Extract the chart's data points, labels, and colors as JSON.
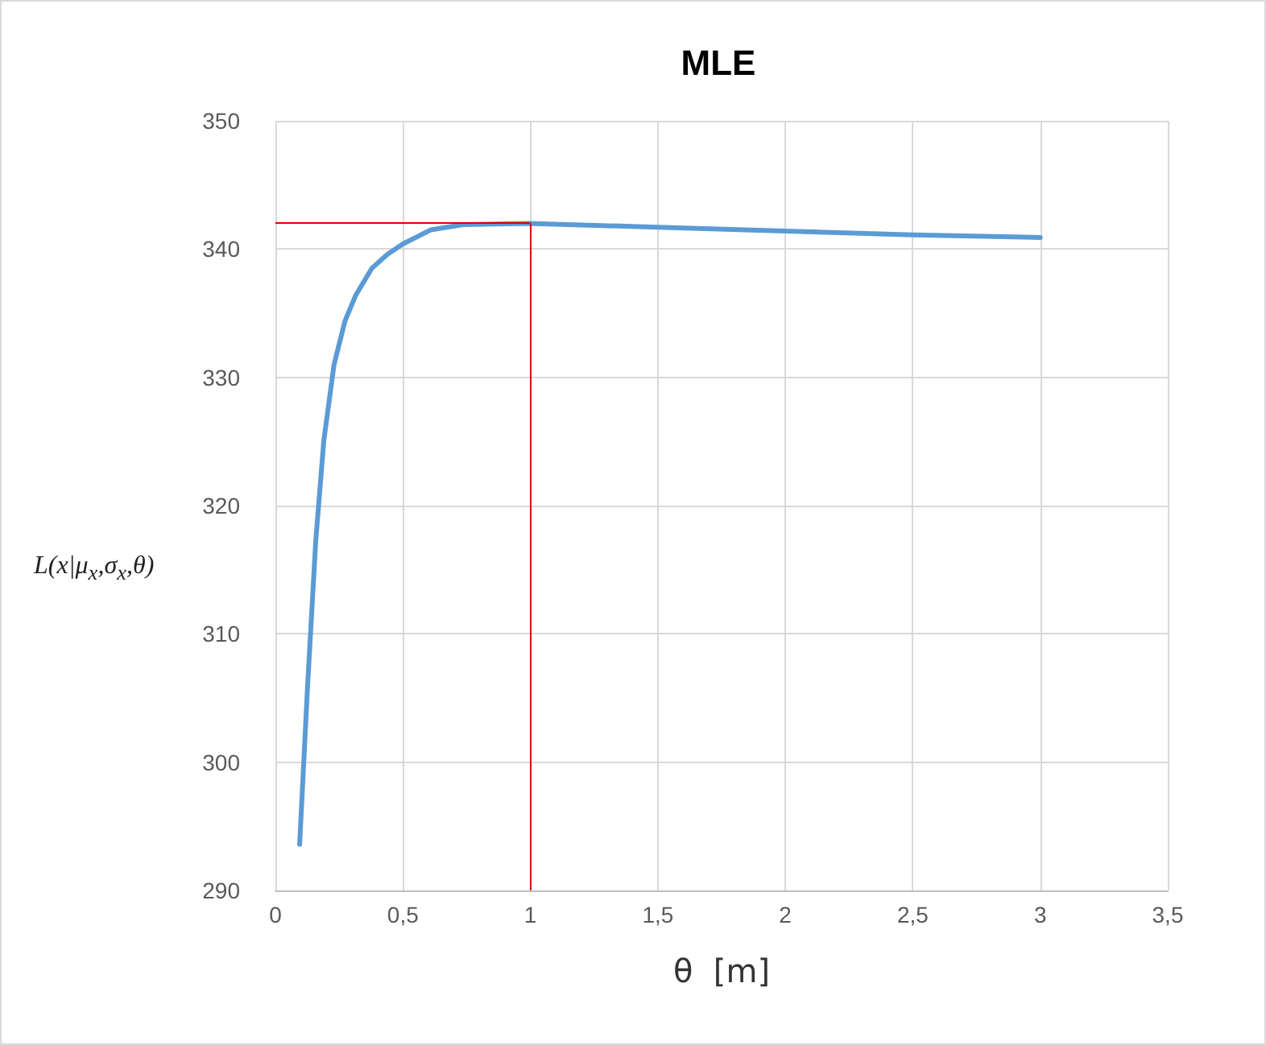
{
  "chart_data": {
    "type": "line",
    "title": "MLE",
    "xlabel": "θ  [m]",
    "ylabel": "L(x|μ$_{x}$,σ$_{x}$,θ)",
    "series": [
      {
        "color": "#5b9bd5",
        "x": [
          0.095,
          0.126,
          0.158,
          0.19,
          0.23,
          0.273,
          0.315,
          0.378,
          0.44,
          0.5,
          0.61,
          0.735,
          0.99,
          1.5,
          2,
          2.5,
          3
        ],
        "values": [
          293.6,
          305.9,
          317.2,
          325.1,
          331,
          334.4,
          336.4,
          338.5,
          339.6,
          340.4,
          341.5,
          341.9,
          342,
          341.7,
          341.4,
          341.1,
          340.9
        ]
      }
    ],
    "xlim": [
      0,
      3.5
    ],
    "xticks": [
      0,
      {
        "value": 0.5,
        "label": "0,5"
      },
      1,
      {
        "value": 1.5,
        "label": "1,5"
      },
      2,
      {
        "value": 2.5,
        "label": "2,5"
      },
      3,
      {
        "value": 3.5,
        "label": "3,5"
      }
    ],
    "ylim": [
      290,
      350
    ],
    "yticks": [
      290,
      300,
      310,
      320,
      330,
      340,
      350
    ],
    "grid": true,
    "marker": "none",
    "line_style": "solid",
    "ref_lines": [
      {
        "axis": "x",
        "value": 1,
        "color": "#e00000"
      },
      {
        "axis": "y",
        "value": 342,
        "color": "#e00000"
      }
    ]
  }
}
